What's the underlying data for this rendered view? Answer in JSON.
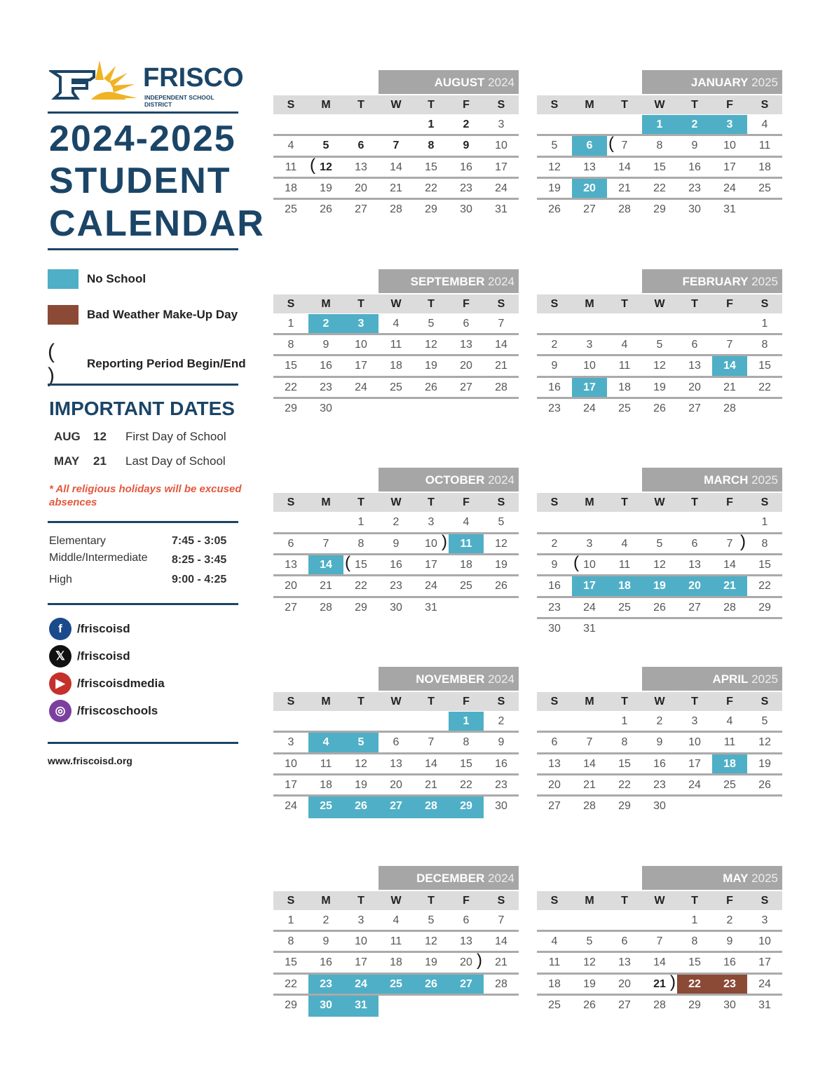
{
  "logo": {
    "name": "FRISCO",
    "sub": "INDEPENDENT SCHOOL DISTRICT"
  },
  "title": [
    "2024-2025",
    "STUDENT",
    "CALENDAR"
  ],
  "legend": {
    "no_school": "No School",
    "makeup": "Bad Weather Make-Up Day",
    "paren": "( )",
    "reporting": "Reporting Period Begin/End"
  },
  "colors": {
    "no_school": "#4fafc6",
    "makeup": "#8b4a36",
    "navy": "#1b4567",
    "header": "#a6a6a6"
  },
  "important": {
    "heading": "IMPORTANT DATES",
    "dates": [
      {
        "month": "AUG",
        "day": "12",
        "label": "First Day of School"
      },
      {
        "month": "MAY",
        "day": "21",
        "label": "Last Day of School"
      }
    ],
    "note": "* All religious holidays will be excused absences"
  },
  "times": [
    {
      "level": "Elementary",
      "time": "7:45 - 3:05"
    },
    {
      "level": "Middle/Intermediate",
      "time": "8:25 - 3:45"
    },
    {
      "level": "High",
      "time": "9:00 - 4:25"
    }
  ],
  "social": [
    {
      "icon": "facebook-icon",
      "handle": "/friscoisd",
      "color": "#1b4a8c",
      "glyph": "f"
    },
    {
      "icon": "x-icon",
      "handle": "/friscoisd",
      "color": "#111",
      "glyph": "𝕏"
    },
    {
      "icon": "youtube-icon",
      "handle": "/friscoisdmedia",
      "color": "#c4302b",
      "glyph": "▶"
    },
    {
      "icon": "instagram-icon",
      "handle": "/friscoschools",
      "color": "#7b3fa0",
      "glyph": "◎"
    }
  ],
  "url": "www.friscoisd.org",
  "weekdays": [
    "S",
    "M",
    "T",
    "W",
    "T",
    "F",
    "S"
  ],
  "months": [
    {
      "name": "AUGUST",
      "year": "2024",
      "start": 4,
      "days": 31,
      "no_school": [],
      "makeup": [],
      "open": [
        12
      ],
      "close": [],
      "bold": [
        1,
        2,
        5,
        6,
        7,
        8,
        9,
        12
      ]
    },
    {
      "name": "JANUARY",
      "year": "2025",
      "start": 3,
      "days": 31,
      "no_school": [
        1,
        2,
        3,
        6,
        20
      ],
      "makeup": [],
      "open": [
        7
      ],
      "close": [],
      "bold": []
    },
    {
      "name": "SEPTEMBER",
      "year": "2024",
      "start": 0,
      "days": 30,
      "no_school": [
        2,
        3
      ],
      "makeup": [],
      "open": [],
      "close": [],
      "bold": []
    },
    {
      "name": "FEBRUARY",
      "year": "2025",
      "start": 6,
      "days": 28,
      "no_school": [
        14,
        17
      ],
      "makeup": [],
      "open": [],
      "close": [],
      "bold": []
    },
    {
      "name": "OCTOBER",
      "year": "2024",
      "start": 2,
      "days": 31,
      "no_school": [
        11,
        14
      ],
      "makeup": [],
      "open": [
        15
      ],
      "close": [
        10
      ],
      "bold": []
    },
    {
      "name": "MARCH",
      "year": "2025",
      "start": 6,
      "days": 31,
      "no_school": [
        17,
        18,
        19,
        20,
        21
      ],
      "makeup": [],
      "open": [
        10
      ],
      "close": [
        7
      ],
      "bold": []
    },
    {
      "name": "NOVEMBER",
      "year": "2024",
      "start": 5,
      "days": 30,
      "no_school": [
        1,
        4,
        5,
        25,
        26,
        27,
        28,
        29
      ],
      "makeup": [],
      "open": [],
      "close": [],
      "bold": []
    },
    {
      "name": "APRIL",
      "year": "2025",
      "start": 2,
      "days": 30,
      "no_school": [
        18
      ],
      "makeup": [],
      "open": [],
      "close": [],
      "bold": []
    },
    {
      "name": "DECEMBER",
      "year": "2024",
      "start": 0,
      "days": 31,
      "no_school": [
        23,
        24,
        25,
        26,
        27,
        30,
        31
      ],
      "makeup": [],
      "open": [],
      "close": [
        20
      ],
      "bold": []
    },
    {
      "name": "MAY",
      "year": "2025",
      "start": 4,
      "days": 31,
      "no_school": [],
      "makeup": [
        22,
        23
      ],
      "open": [],
      "close": [
        21
      ],
      "bold": [
        21
      ]
    }
  ]
}
